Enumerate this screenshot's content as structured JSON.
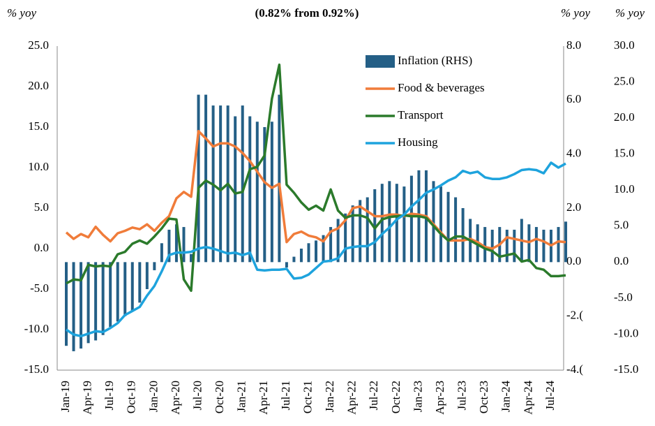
{
  "chart_data": {
    "type": "bar-line",
    "subtitle": "(0.82% from 0.92%)",
    "y_unit": "% yoy",
    "y2_unit": "% yoy",
    "y3_unit": "% yoy",
    "categories": [
      "Jan-19",
      null,
      null,
      "Apr-19",
      null,
      null,
      "Jul-19",
      null,
      null,
      "Oct-19",
      null,
      null,
      "Jan-20",
      null,
      null,
      "Apr-20",
      null,
      null,
      "Jul-20",
      null,
      null,
      "Oct-20",
      null,
      null,
      "Jan-21",
      null,
      null,
      "Apr-21",
      null,
      null,
      "Jul-21",
      null,
      null,
      "Oct-21",
      null,
      null,
      "Jan-22",
      null,
      null,
      "Apr-22",
      null,
      null,
      "Jul-22",
      null,
      null,
      "Oct-22",
      null,
      null,
      "Jan-23",
      null,
      null,
      "Apr-23",
      null,
      null,
      "Jul-23",
      null,
      null,
      "Oct-23",
      null,
      null,
      "Jan-24",
      null,
      null,
      "Apr-24",
      null,
      null,
      "Jul-24",
      null,
      null
    ],
    "series": [
      {
        "name": "Inflation (RHS)",
        "kind": "bar",
        "axis": "y2",
        "color": "#245f86",
        "values": [
          -3.1,
          -3.3,
          -3.2,
          -3.0,
          -2.9,
          -2.7,
          -2.4,
          -2.2,
          -2.0,
          -1.8,
          -1.5,
          -1.0,
          -0.3,
          0.7,
          1.2,
          1.4,
          1.3,
          0.3,
          6.2,
          6.2,
          5.8,
          5.8,
          5.8,
          5.4,
          5.8,
          5.4,
          5.2,
          5.0,
          5.2,
          6.2,
          -0.2,
          0.2,
          0.5,
          0.7,
          0.8,
          1.0,
          1.3,
          1.6,
          1.8,
          2.1,
          2.3,
          2.4,
          2.7,
          2.9,
          3.0,
          2.9,
          2.8,
          3.2,
          3.4,
          3.4,
          3.0,
          2.8,
          2.6,
          2.4,
          2.0,
          1.6,
          1.4,
          1.3,
          1.2,
          1.3,
          1.2,
          1.2,
          1.6,
          1.4,
          1.3,
          1.2,
          1.2,
          1.3,
          1.5
        ]
      },
      {
        "name": "Food & beverages",
        "kind": "line",
        "color": "#f07c3a",
        "values": [
          2.0,
          1.2,
          1.8,
          1.4,
          2.7,
          1.7,
          0.9,
          1.9,
          2.2,
          2.6,
          2.4,
          3.0,
          2.2,
          3.2,
          4.0,
          6.2,
          7.0,
          6.4,
          14.5,
          13.6,
          12.6,
          13.0,
          13.0,
          12.6,
          11.8,
          10.8,
          9.5,
          8.2,
          7.5,
          8.0,
          0.8,
          1.8,
          2.1,
          1.6,
          1.4,
          0.9,
          2.1,
          2.5,
          3.5,
          5.0,
          5.2,
          4.6,
          4.0,
          4.0,
          4.2,
          4.2,
          4.0,
          4.3,
          4.2,
          4.0,
          3.0,
          2.0,
          1.0,
          1.0,
          1.0,
          1.2,
          0.8,
          0.2,
          0.0,
          0.5,
          1.4,
          1.2,
          1.0,
          0.8,
          1.2,
          0.9,
          0.4,
          0.9,
          0.8
        ]
      },
      {
        "name": "Transport",
        "kind": "line",
        "color": "#2b7a2b",
        "values": [
          -4.3,
          -3.8,
          -3.9,
          -2.0,
          -2.2,
          -2.1,
          -2.2,
          -0.7,
          -0.4,
          0.6,
          1.0,
          0.6,
          1.5,
          2.5,
          3.7,
          3.6,
          -3.8,
          -5.2,
          7.5,
          8.4,
          7.9,
          7.2,
          8.0,
          6.8,
          7.0,
          9.8,
          10.1,
          11.5,
          18.5,
          22.7,
          7.9,
          6.9,
          5.7,
          4.8,
          5.3,
          4.7,
          7.3,
          4.7,
          3.8,
          4.1,
          4.1,
          3.8,
          2.5,
          3.6,
          3.9,
          4.0,
          4.1,
          4.0,
          4.0,
          3.8,
          2.8,
          1.8,
          1.0,
          1.5,
          1.5,
          1.0,
          0.5,
          0.0,
          -0.3,
          -1.0,
          -0.8,
          -0.6,
          -1.6,
          -1.4,
          -2.4,
          -2.6,
          -3.4,
          -3.4,
          -3.3
        ]
      },
      {
        "name": "Housing",
        "kind": "line",
        "color": "#1ea3dd",
        "values": [
          -10.0,
          -10.6,
          -10.8,
          -10.5,
          -10.2,
          -10.3,
          -9.8,
          -9.2,
          -8.2,
          -7.7,
          -7.2,
          -5.8,
          -4.6,
          -2.8,
          -0.8,
          -0.5,
          -0.5,
          -0.4,
          0.0,
          0.2,
          0.0,
          -0.3,
          -0.6,
          -0.5,
          -0.8,
          -0.5,
          -2.6,
          -2.7,
          -2.6,
          -2.6,
          -2.5,
          -3.7,
          -3.6,
          -3.2,
          -2.4,
          -1.6,
          -1.5,
          -1.2,
          0.0,
          0.2,
          0.3,
          0.3,
          0.8,
          1.8,
          2.6,
          3.6,
          4.2,
          5.2,
          6.0,
          6.9,
          7.3,
          7.8,
          8.4,
          8.8,
          9.6,
          9.3,
          9.5,
          8.8,
          8.6,
          8.6,
          8.8,
          9.2,
          9.7,
          9.8,
          9.7,
          9.3,
          10.6,
          10.0,
          10.5
        ]
      }
    ],
    "ylim": [
      -15,
      25
    ],
    "yticks": [
      {
        "value": 25,
        "label": "25.0"
      },
      {
        "value": 20,
        "label": "20.0"
      },
      {
        "value": 15,
        "label": "15.0"
      },
      {
        "value": 10,
        "label": "10.0"
      },
      {
        "value": 5,
        "label": "5.0"
      },
      {
        "value": 0,
        "label": "0.0"
      },
      {
        "value": -5,
        "label": "-5.0"
      },
      {
        "value": -10,
        "label": "-10.0"
      },
      {
        "value": -15,
        "label": "-15.0"
      }
    ],
    "y2lim": [
      -4,
      8
    ],
    "y2ticks": [
      {
        "value": 8,
        "label": "8.0"
      },
      {
        "value": 6,
        "label": "6.0"
      },
      {
        "value": 4,
        "label": "4.0"
      },
      {
        "value": 2,
        "label": "2.0"
      },
      {
        "value": 0,
        "label": "0.0"
      },
      {
        "value": -2,
        "label": "-2.("
      },
      {
        "value": -4,
        "label": "-4.("
      }
    ],
    "y3lim": [
      -15,
      30
    ],
    "y3ticks": [
      {
        "value": 30,
        "label": "30.0"
      },
      {
        "value": 25,
        "label": "25.0"
      },
      {
        "value": 20,
        "label": "20.0"
      },
      {
        "value": 15,
        "label": "15.0"
      },
      {
        "value": 10,
        "label": "10.0"
      },
      {
        "value": 5,
        "label": "5.0"
      },
      {
        "value": 0,
        "label": "0.0"
      },
      {
        "value": -5,
        "label": "-5.0"
      },
      {
        "value": -10,
        "label": "-10.0"
      },
      {
        "value": -15,
        "label": "-15.0"
      }
    ],
    "legend": "top-right"
  }
}
